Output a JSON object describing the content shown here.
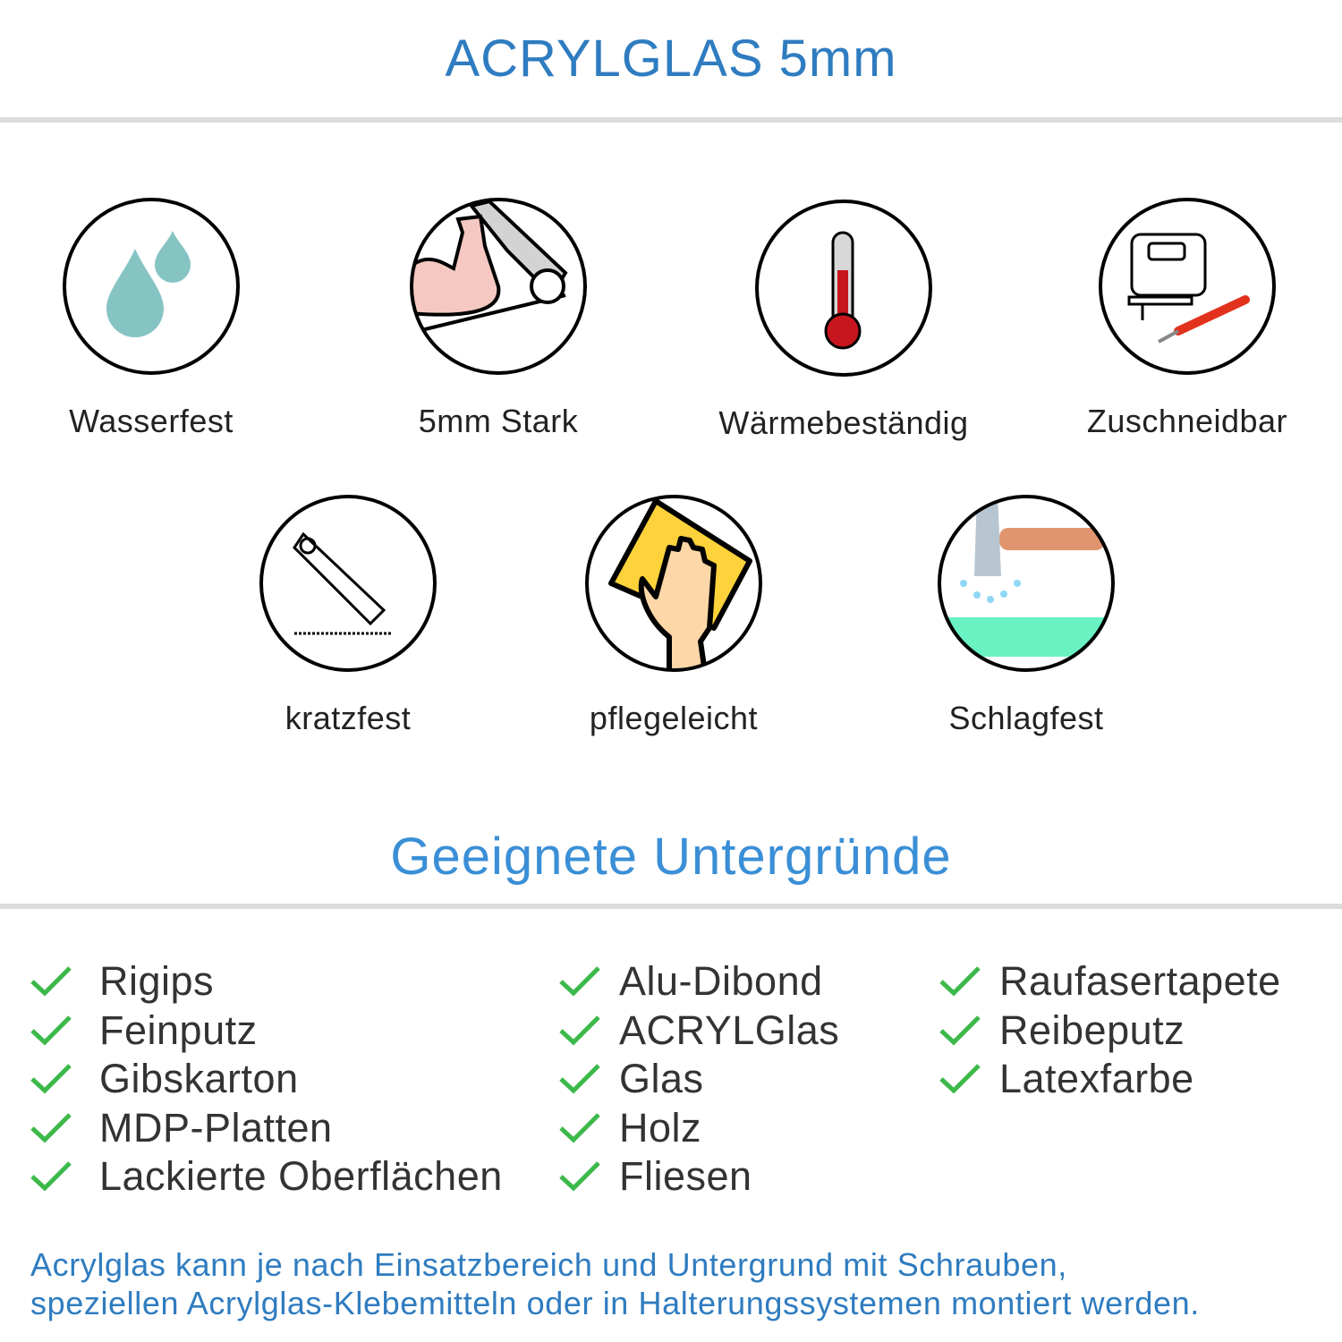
{
  "header": {
    "title": "ACRYLGLAS 5mm"
  },
  "features": [
    {
      "label": "Wasserfest",
      "icon": "water-drops-icon"
    },
    {
      "label": "5mm Stark",
      "icon": "strong-arm-icon"
    },
    {
      "label": "Wärmebeständig",
      "icon": "thermometer-icon"
    },
    {
      "label": "Zuschneidbar",
      "icon": "jigsaw-cutter-icon"
    },
    {
      "label": "kratzfest",
      "icon": "cutter-knife-icon"
    },
    {
      "label": "pflegeleicht",
      "icon": "cleaning-hand-icon"
    },
    {
      "label": "Schlagfest",
      "icon": "hammer-icon"
    }
  ],
  "surfaces": {
    "title": "Geeignete Untergründe",
    "columns": [
      [
        "Rigips",
        "Feinputz",
        "Gibskarton",
        "MDP-Platten",
        "Lackierte Oberflächen"
      ],
      [
        "Alu-Dibond",
        "ACRYLGlas",
        "Glas",
        "Holz",
        "Fliesen"
      ],
      [
        "Raufasertapete",
        "Reibeputz",
        "Latexfarbe"
      ]
    ]
  },
  "footer": {
    "line1": "Acrylglas kann je nach Einsatzbereich und Untergrund mit Schrauben,",
    "line2": "speziellen Acrylglas-Klebemitteln oder in Halterungssystemen montiert werden."
  },
  "colors": {
    "accent": "#2f7cc0",
    "check": "#3cb94a",
    "divider": "#dcdcdc"
  }
}
